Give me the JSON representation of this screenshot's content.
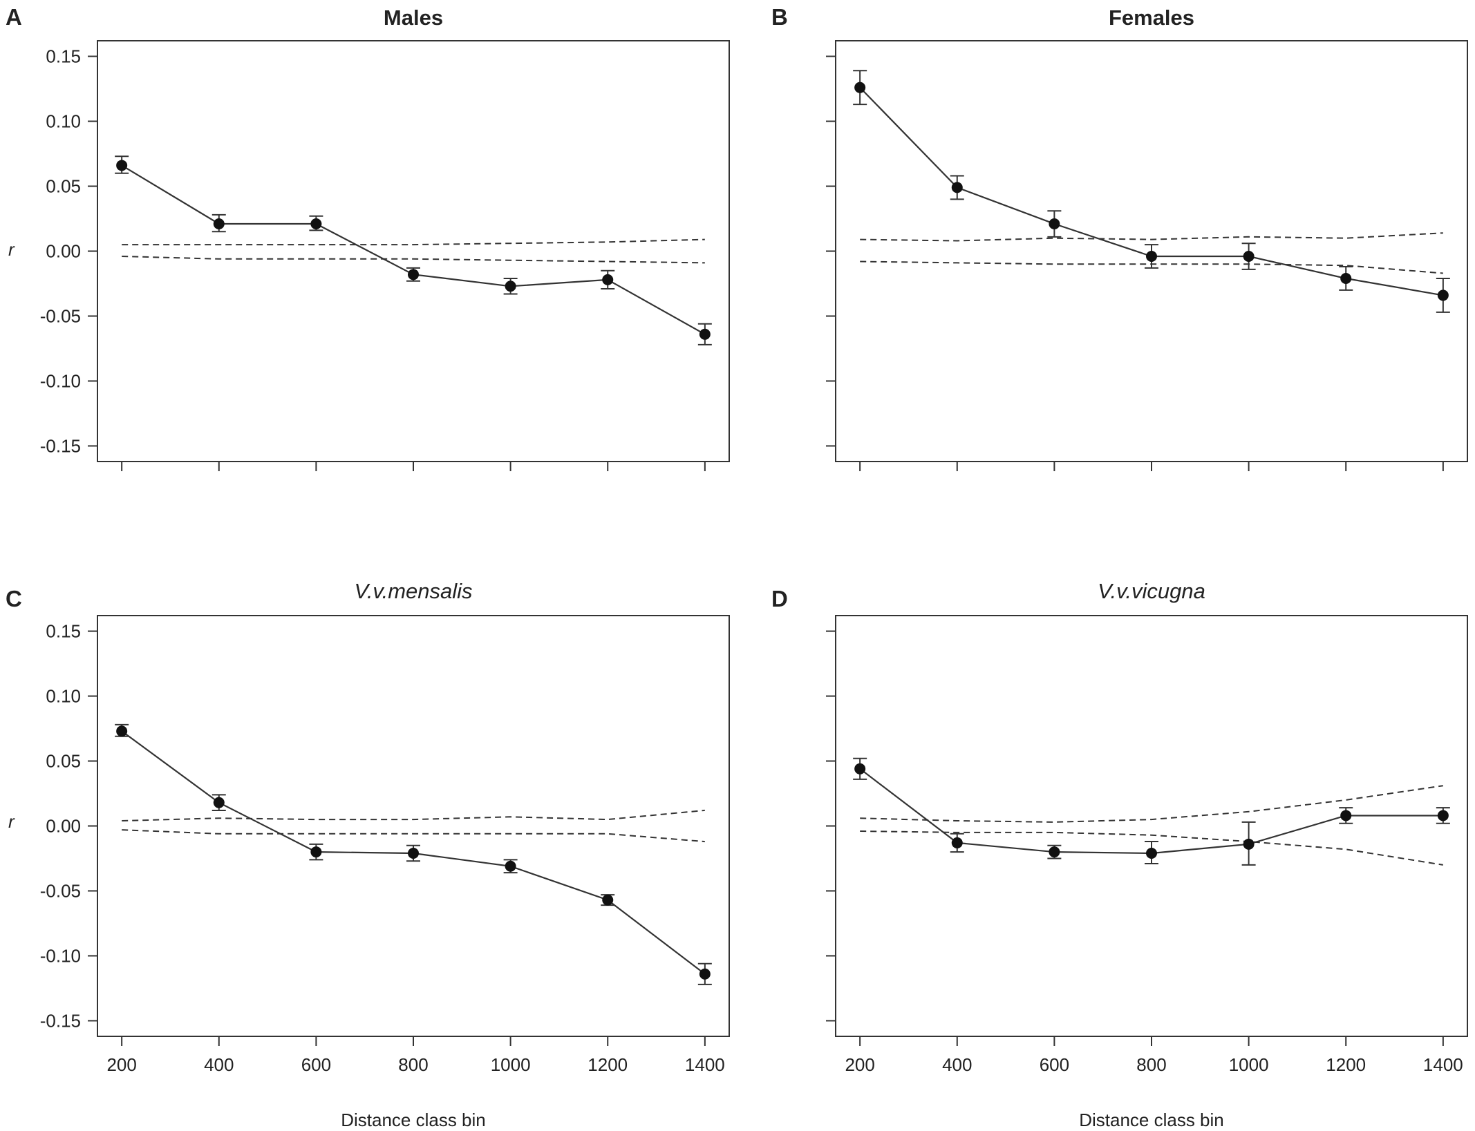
{
  "chart_data": [
    {
      "panel": "A",
      "title": "Males",
      "title_style": "bold",
      "type": "line",
      "xlabel": "",
      "ylabel": "r",
      "x": [
        200,
        400,
        600,
        800,
        1000,
        1200,
        1400
      ],
      "xlim": [
        150,
        1450
      ],
      "ylim": [
        -0.162,
        0.162
      ],
      "yticks": [
        0.15,
        0.1,
        0.05,
        0.0,
        -0.05,
        -0.1,
        -0.15
      ],
      "ytick_labels": [
        "0.15",
        "0.10",
        "0.05",
        "0.00",
        "-0.05",
        "-0.10",
        "-0.15"
      ],
      "xtick_labels": [],
      "series": [
        {
          "name": "r",
          "values": [
            0.066,
            0.021,
            0.021,
            -0.018,
            -0.027,
            -0.022,
            -0.064
          ],
          "err_low": [
            0.06,
            0.015,
            0.016,
            -0.023,
            -0.033,
            -0.029,
            -0.072
          ],
          "err_high": [
            0.073,
            0.028,
            0.027,
            -0.013,
            -0.021,
            -0.015,
            -0.056
          ]
        },
        {
          "name": "upper_ci",
          "style": "dashed",
          "values": [
            0.005,
            0.005,
            0.005,
            0.005,
            0.006,
            0.007,
            0.009
          ]
        },
        {
          "name": "lower_ci",
          "style": "dashed",
          "values": [
            -0.004,
            -0.006,
            -0.006,
            -0.006,
            -0.007,
            -0.008,
            -0.009
          ]
        }
      ]
    },
    {
      "panel": "B",
      "title": "Females",
      "title_style": "bold",
      "type": "line",
      "xlabel": "",
      "ylabel": "",
      "x": [
        200,
        400,
        600,
        800,
        1000,
        1200,
        1400
      ],
      "xlim": [
        150,
        1450
      ],
      "ylim": [
        -0.162,
        0.162
      ],
      "yticks": [
        0.15,
        0.1,
        0.05,
        0.0,
        -0.05,
        -0.1,
        -0.15
      ],
      "ytick_labels": [],
      "xtick_labels": [],
      "series": [
        {
          "name": "r",
          "values": [
            0.126,
            0.049,
            0.021,
            -0.004,
            -0.004,
            -0.021,
            -0.034
          ],
          "err_low": [
            0.113,
            0.04,
            0.011,
            -0.013,
            -0.014,
            -0.03,
            -0.047
          ],
          "err_high": [
            0.139,
            0.058,
            0.031,
            0.005,
            0.006,
            -0.012,
            -0.021
          ]
        },
        {
          "name": "upper_ci",
          "style": "dashed",
          "values": [
            0.009,
            0.008,
            0.01,
            0.009,
            0.011,
            0.01,
            0.014
          ]
        },
        {
          "name": "lower_ci",
          "style": "dashed",
          "values": [
            -0.008,
            -0.009,
            -0.01,
            -0.01,
            -0.01,
            -0.011,
            -0.017
          ]
        }
      ]
    },
    {
      "panel": "C",
      "title": "V.v.mensalis",
      "title_style": "italic",
      "type": "line",
      "xlabel": "Distance class bin",
      "ylabel": "r",
      "x": [
        200,
        400,
        600,
        800,
        1000,
        1200,
        1400
      ],
      "xlim": [
        150,
        1450
      ],
      "ylim": [
        -0.162,
        0.162
      ],
      "yticks": [
        0.15,
        0.1,
        0.05,
        0.0,
        -0.05,
        -0.1,
        -0.15
      ],
      "ytick_labels": [
        "0.15",
        "0.10",
        "0.05",
        "0.00",
        "-0.05",
        "-0.10",
        "-0.15"
      ],
      "xtick_labels": [
        "200",
        "400",
        "600",
        "800",
        "1000",
        "1200",
        "1400"
      ],
      "series": [
        {
          "name": "r",
          "values": [
            0.073,
            0.018,
            -0.02,
            -0.021,
            -0.031,
            -0.057,
            -0.114
          ],
          "err_low": [
            0.069,
            0.012,
            -0.026,
            -0.027,
            -0.036,
            -0.061,
            -0.122
          ],
          "err_high": [
            0.078,
            0.024,
            -0.014,
            -0.015,
            -0.026,
            -0.053,
            -0.106
          ]
        },
        {
          "name": "upper_ci",
          "style": "dashed",
          "values": [
            0.004,
            0.006,
            0.005,
            0.005,
            0.007,
            0.005,
            0.012
          ]
        },
        {
          "name": "lower_ci",
          "style": "dashed",
          "values": [
            -0.003,
            -0.006,
            -0.006,
            -0.006,
            -0.006,
            -0.006,
            -0.012
          ]
        }
      ]
    },
    {
      "panel": "D",
      "title": "V.v.vicugna",
      "title_style": "italic",
      "type": "line",
      "xlabel": "Distance class bin",
      "ylabel": "",
      "x": [
        200,
        400,
        600,
        800,
        1000,
        1200,
        1400
      ],
      "xlim": [
        150,
        1450
      ],
      "ylim": [
        -0.162,
        0.162
      ],
      "yticks": [
        0.15,
        0.1,
        0.05,
        0.0,
        -0.05,
        -0.1,
        -0.15
      ],
      "ytick_labels": [],
      "xtick_labels": [
        "200",
        "400",
        "600",
        "800",
        "1000",
        "1200",
        "1400"
      ],
      "series": [
        {
          "name": "r",
          "values": [
            0.044,
            -0.013,
            -0.02,
            -0.021,
            -0.014,
            0.008,
            0.008
          ],
          "err_low": [
            0.036,
            -0.02,
            -0.025,
            -0.029,
            -0.03,
            0.002,
            0.002
          ],
          "err_high": [
            0.052,
            -0.006,
            -0.015,
            -0.012,
            0.003,
            0.014,
            0.014
          ]
        },
        {
          "name": "upper_ci",
          "style": "dashed",
          "values": [
            0.006,
            0.004,
            0.003,
            0.005,
            0.011,
            0.02,
            0.031
          ]
        },
        {
          "name": "lower_ci",
          "style": "dashed",
          "values": [
            -0.004,
            -0.005,
            -0.005,
            -0.007,
            -0.012,
            -0.018,
            -0.03
          ]
        }
      ]
    }
  ]
}
